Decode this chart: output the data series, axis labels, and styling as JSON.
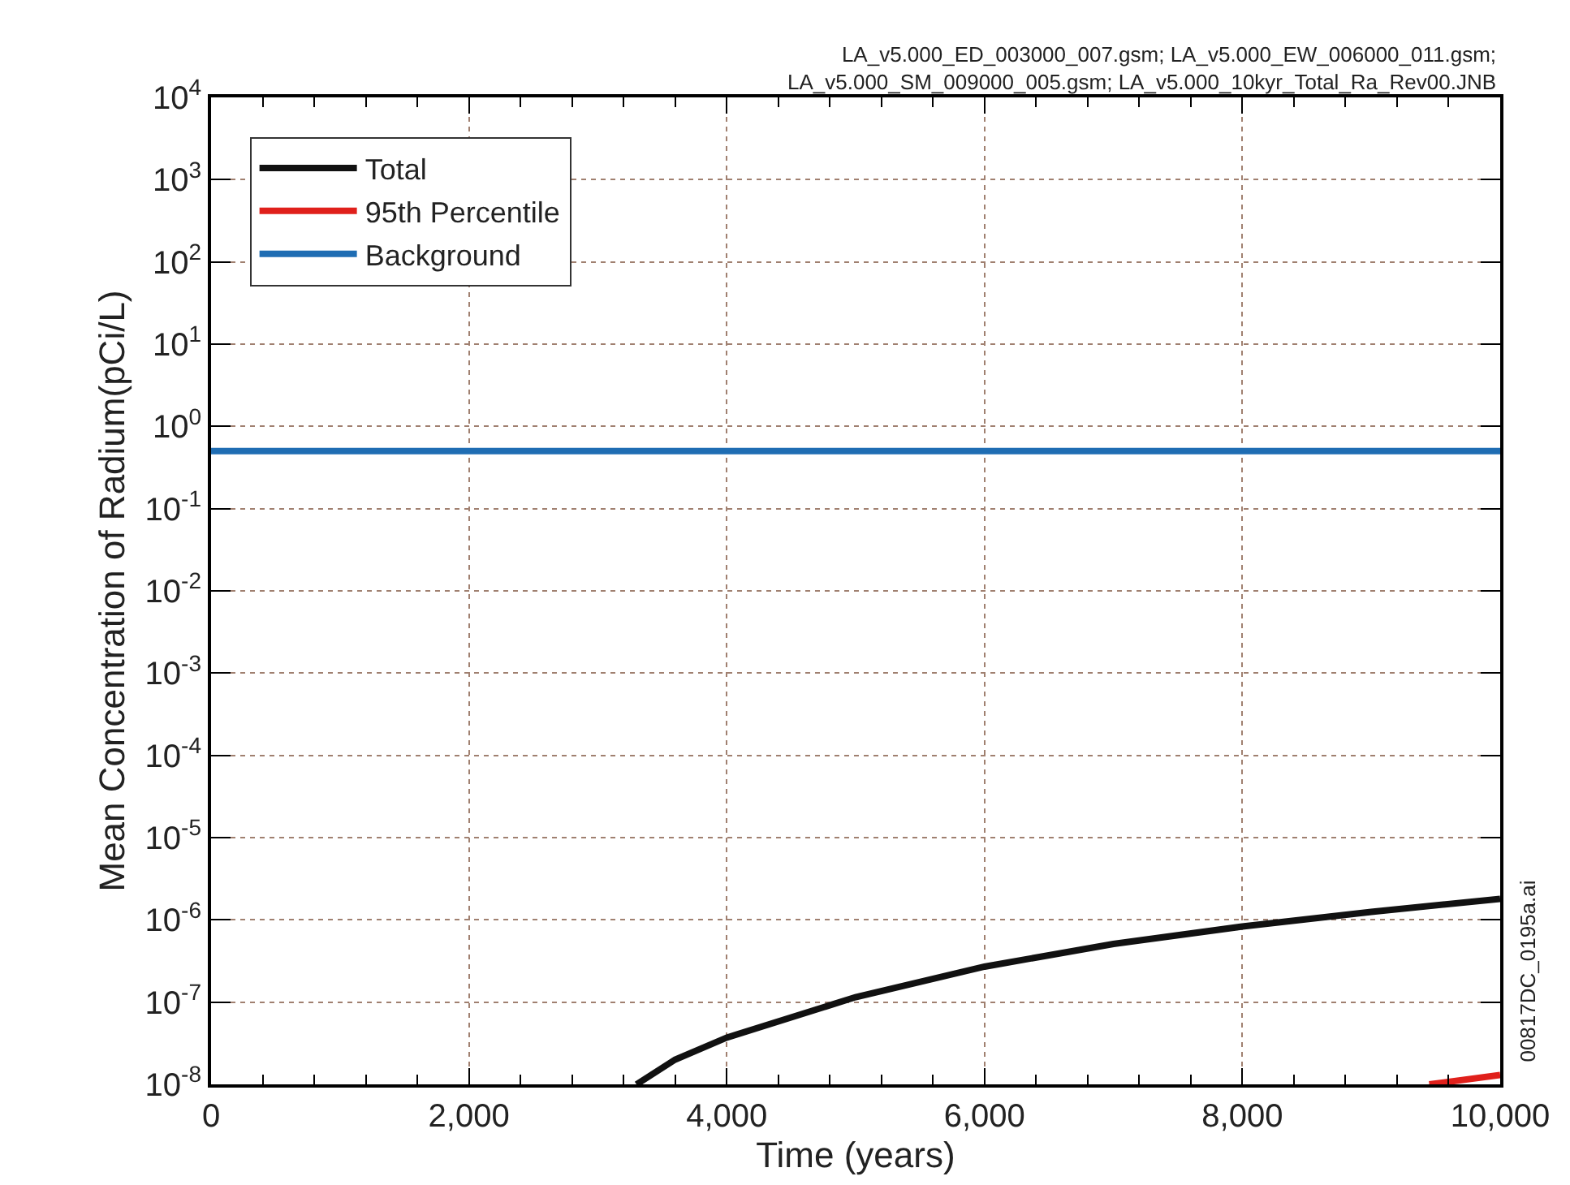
{
  "chart_data": {
    "type": "line",
    "xlabel": "Time (years)",
    "ylabel": "Mean Concentration of Radium(pCi/L)",
    "annotations": [
      "LA_v5.000_ED_003000_007.gsm; LA_v5.000_EW_006000_011.gsm;\nLA_v5.000_SM_009000_005.gsm; LA_v5.000_10kyr_Total_Ra_Rev00.JNB",
      "00817DC_0195a.ai"
    ],
    "series": [
      {
        "name": "Total",
        "color": "#111111",
        "x": [
          3300,
          3600,
          4000,
          5000,
          6000,
          7000,
          8000,
          9000,
          10000
        ],
        "values": [
          1e-08,
          2e-08,
          3.7e-08,
          1.15e-07,
          2.7e-07,
          5.1e-07,
          8.3e-07,
          1.25e-06,
          1.8e-06
        ]
      },
      {
        "name": "95th Percentile",
        "color": "#e0201b",
        "x": [
          9450,
          10000
        ],
        "values": [
          1e-08,
          1.3e-08
        ]
      },
      {
        "name": "Background",
        "color": "#1f6db3",
        "x": [
          0,
          10000
        ],
        "values": [
          0.5,
          0.5
        ]
      }
    ],
    "log": "y",
    "xlim": [
      0,
      10000
    ],
    "ylim": [
      1e-08,
      10000.0
    ],
    "xticks": [
      {
        "value": 0,
        "label": "0"
      },
      {
        "value": 2000,
        "label": "2,000"
      },
      {
        "value": 4000,
        "label": "4,000"
      },
      {
        "value": 6000,
        "label": "6,000"
      },
      {
        "value": 8000,
        "label": "8,000"
      },
      {
        "value": 10000,
        "label": "10,000"
      }
    ],
    "yticks": [
      {
        "value": 1e-08,
        "label": "10$^{-8}$"
      },
      {
        "value": 1e-07,
        "label": "10$^{-7}$"
      },
      {
        "value": 1e-06,
        "label": "10$^{-6}$"
      },
      {
        "value": 1e-05,
        "label": "10$^{-5}$"
      },
      {
        "value": 0.0001,
        "label": "10$^{-4}$"
      },
      {
        "value": 0.001,
        "label": "10$^{-3}$"
      },
      {
        "value": 0.01,
        "label": "10$^{-2}$"
      },
      {
        "value": 0.1,
        "label": "10$^{-1}$"
      },
      {
        "value": 1,
        "label": "10$^{0}$"
      },
      {
        "value": 10,
        "label": "10$^{1}$"
      },
      {
        "value": 100,
        "label": "10$^{2}$"
      },
      {
        "value": 1000,
        "label": "10$^{3}$"
      },
      {
        "value": 10000,
        "label": "10$^{4}$"
      }
    ],
    "grid": true,
    "legend": "top left",
    "marker": "none",
    "line_style": "solid"
  }
}
